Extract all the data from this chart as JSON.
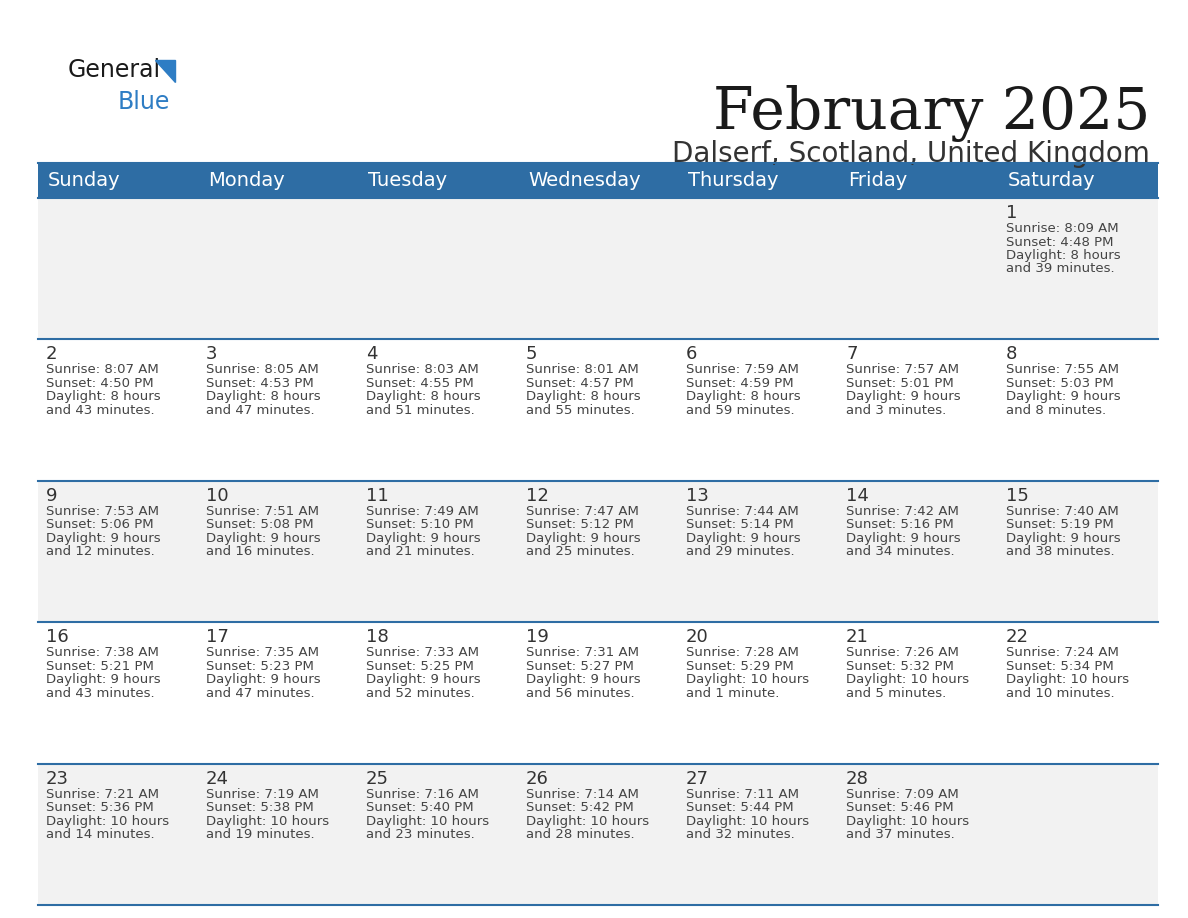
{
  "title": "February 2025",
  "subtitle": "Dalserf, Scotland, United Kingdom",
  "header_bg": "#2E6DA4",
  "header_text": "#FFFFFF",
  "cell_bg_odd": "#F2F2F2",
  "cell_bg_even": "#FFFFFF",
  "separator_color": "#2E6DA4",
  "text_color": "#444444",
  "day_num_color": "#333333",
  "days_of_week": [
    "Sunday",
    "Monday",
    "Tuesday",
    "Wednesday",
    "Thursday",
    "Friday",
    "Saturday"
  ],
  "calendar": [
    [
      null,
      null,
      null,
      null,
      null,
      null,
      {
        "day": 1,
        "sunrise": "8:09 AM",
        "sunset": "4:48 PM",
        "daylight": "8 hours\nand 39 minutes."
      }
    ],
    [
      {
        "day": 2,
        "sunrise": "8:07 AM",
        "sunset": "4:50 PM",
        "daylight": "8 hours\nand 43 minutes."
      },
      {
        "day": 3,
        "sunrise": "8:05 AM",
        "sunset": "4:53 PM",
        "daylight": "8 hours\nand 47 minutes."
      },
      {
        "day": 4,
        "sunrise": "8:03 AM",
        "sunset": "4:55 PM",
        "daylight": "8 hours\nand 51 minutes."
      },
      {
        "day": 5,
        "sunrise": "8:01 AM",
        "sunset": "4:57 PM",
        "daylight": "8 hours\nand 55 minutes."
      },
      {
        "day": 6,
        "sunrise": "7:59 AM",
        "sunset": "4:59 PM",
        "daylight": "8 hours\nand 59 minutes."
      },
      {
        "day": 7,
        "sunrise": "7:57 AM",
        "sunset": "5:01 PM",
        "daylight": "9 hours\nand 3 minutes."
      },
      {
        "day": 8,
        "sunrise": "7:55 AM",
        "sunset": "5:03 PM",
        "daylight": "9 hours\nand 8 minutes."
      }
    ],
    [
      {
        "day": 9,
        "sunrise": "7:53 AM",
        "sunset": "5:06 PM",
        "daylight": "9 hours\nand 12 minutes."
      },
      {
        "day": 10,
        "sunrise": "7:51 AM",
        "sunset": "5:08 PM",
        "daylight": "9 hours\nand 16 minutes."
      },
      {
        "day": 11,
        "sunrise": "7:49 AM",
        "sunset": "5:10 PM",
        "daylight": "9 hours\nand 21 minutes."
      },
      {
        "day": 12,
        "sunrise": "7:47 AM",
        "sunset": "5:12 PM",
        "daylight": "9 hours\nand 25 minutes."
      },
      {
        "day": 13,
        "sunrise": "7:44 AM",
        "sunset": "5:14 PM",
        "daylight": "9 hours\nand 29 minutes."
      },
      {
        "day": 14,
        "sunrise": "7:42 AM",
        "sunset": "5:16 PM",
        "daylight": "9 hours\nand 34 minutes."
      },
      {
        "day": 15,
        "sunrise": "7:40 AM",
        "sunset": "5:19 PM",
        "daylight": "9 hours\nand 38 minutes."
      }
    ],
    [
      {
        "day": 16,
        "sunrise": "7:38 AM",
        "sunset": "5:21 PM",
        "daylight": "9 hours\nand 43 minutes."
      },
      {
        "day": 17,
        "sunrise": "7:35 AM",
        "sunset": "5:23 PM",
        "daylight": "9 hours\nand 47 minutes."
      },
      {
        "day": 18,
        "sunrise": "7:33 AM",
        "sunset": "5:25 PM",
        "daylight": "9 hours\nand 52 minutes."
      },
      {
        "day": 19,
        "sunrise": "7:31 AM",
        "sunset": "5:27 PM",
        "daylight": "9 hours\nand 56 minutes."
      },
      {
        "day": 20,
        "sunrise": "7:28 AM",
        "sunset": "5:29 PM",
        "daylight": "10 hours\nand 1 minute."
      },
      {
        "day": 21,
        "sunrise": "7:26 AM",
        "sunset": "5:32 PM",
        "daylight": "10 hours\nand 5 minutes."
      },
      {
        "day": 22,
        "sunrise": "7:24 AM",
        "sunset": "5:34 PM",
        "daylight": "10 hours\nand 10 minutes."
      }
    ],
    [
      {
        "day": 23,
        "sunrise": "7:21 AM",
        "sunset": "5:36 PM",
        "daylight": "10 hours\nand 14 minutes."
      },
      {
        "day": 24,
        "sunrise": "7:19 AM",
        "sunset": "5:38 PM",
        "daylight": "10 hours\nand 19 minutes."
      },
      {
        "day": 25,
        "sunrise": "7:16 AM",
        "sunset": "5:40 PM",
        "daylight": "10 hours\nand 23 minutes."
      },
      {
        "day": 26,
        "sunrise": "7:14 AM",
        "sunset": "5:42 PM",
        "daylight": "10 hours\nand 28 minutes."
      },
      {
        "day": 27,
        "sunrise": "7:11 AM",
        "sunset": "5:44 PM",
        "daylight": "10 hours\nand 32 minutes."
      },
      {
        "day": 28,
        "sunrise": "7:09 AM",
        "sunset": "5:46 PM",
        "daylight": "10 hours\nand 37 minutes."
      },
      null
    ]
  ],
  "title_fontsize": 42,
  "subtitle_fontsize": 20,
  "header_fontsize": 14,
  "day_num_fontsize": 13,
  "cell_text_fontsize": 9.5
}
